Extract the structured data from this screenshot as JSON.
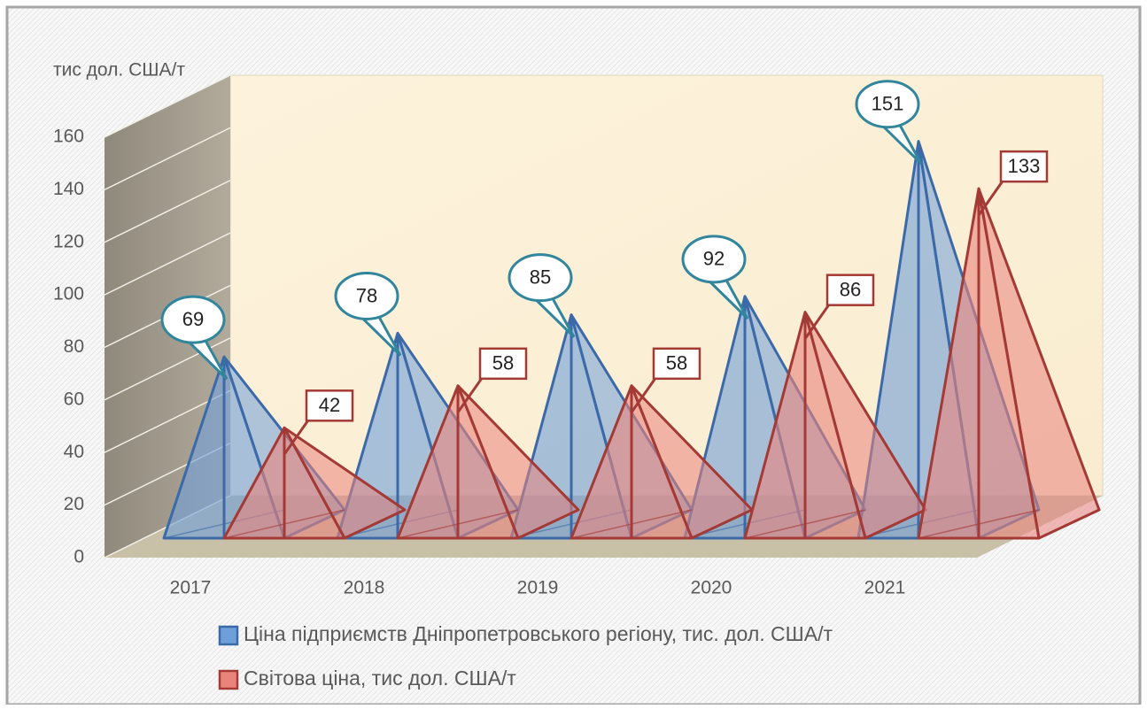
{
  "chart_data": {
    "type": "pyramid3d",
    "y_label": "тис дол. США/т",
    "categories": [
      "2017",
      "2018",
      "2019",
      "2020",
      "2021"
    ],
    "series": [
      {
        "name": "Ціна підприємств Дніпропетровського регіону, тис. дол. США/т",
        "color": "#6f9fd8",
        "edge": "#3c6aa8",
        "values": [
          69,
          78,
          85,
          92,
          151
        ]
      },
      {
        "name": "Світова ціна, тис дол. США/т",
        "color": "#e9847d",
        "edge": "#a33a35",
        "values": [
          42,
          58,
          58,
          86,
          133
        ]
      }
    ],
    "ylim": [
      0,
      160
    ],
    "yticks": [
      0,
      20,
      40,
      60,
      80,
      100,
      120,
      140,
      160
    ],
    "grid": true
  }
}
